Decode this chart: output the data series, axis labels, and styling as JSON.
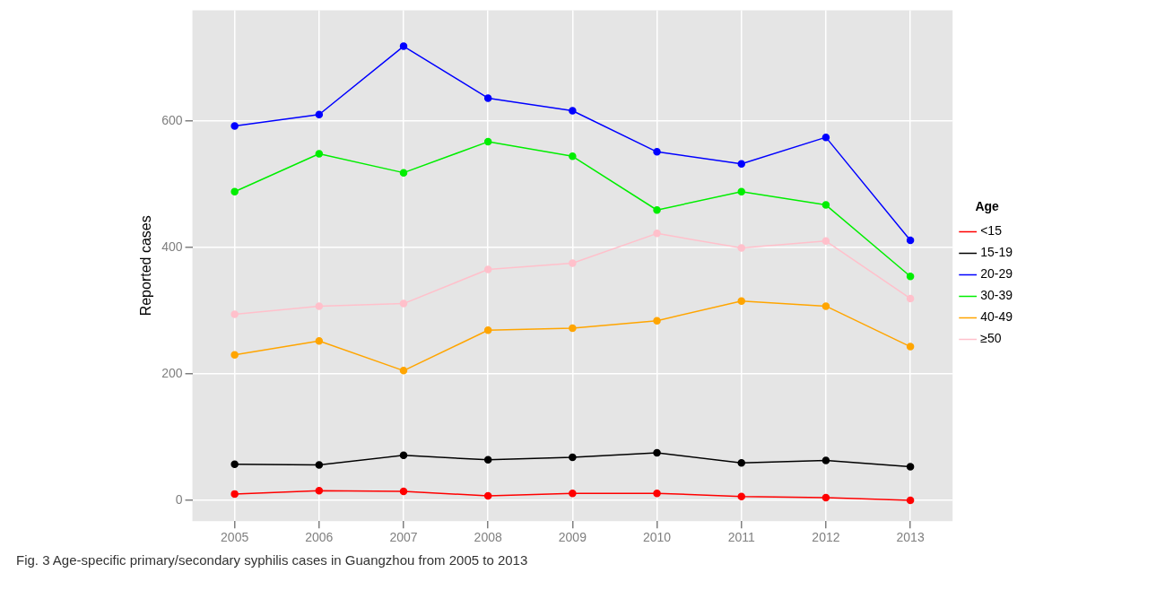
{
  "chart_data": {
    "type": "line",
    "ylabel": "Reported cases",
    "legend_title": "Age",
    "legend": "right",
    "grid": true,
    "marker": "circle",
    "line_style": "solid",
    "categories": [
      "2005",
      "2006",
      "2007",
      "2008",
      "2009",
      "2010",
      "2011",
      "2012",
      "2013"
    ],
    "ylim": [
      -33,
      775
    ],
    "yticks": [
      0,
      200,
      400,
      600
    ],
    "series": [
      {
        "name": "<15",
        "color": "#ff0000",
        "values": [
          10,
          15,
          14,
          7,
          11,
          11,
          6,
          4,
          0
        ]
      },
      {
        "name": "15-19",
        "color": "#000000",
        "values": [
          57,
          56,
          71,
          64,
          68,
          75,
          59,
          63,
          53
        ]
      },
      {
        "name": "20-29",
        "color": "#0000ff",
        "values": [
          592,
          610,
          718,
          636,
          616,
          551,
          532,
          574,
          411
        ]
      },
      {
        "name": "30-39",
        "color": "#00ee00",
        "values": [
          488,
          548,
          518,
          567,
          544,
          459,
          488,
          467,
          354
        ]
      },
      {
        "name": "40-49",
        "color": "#ffa500",
        "values": [
          230,
          252,
          205,
          269,
          272,
          284,
          315,
          307,
          243
        ]
      },
      {
        "name": "≥50",
        "color": "#ffc0cb",
        "values": [
          294,
          307,
          311,
          365,
          375,
          422,
          399,
          410,
          319
        ]
      }
    ],
    "annotations": [
      "Fig. 3 Age-specific primary/secondary syphilis cases in Guangzhou from 2005 to 2013"
    ]
  }
}
